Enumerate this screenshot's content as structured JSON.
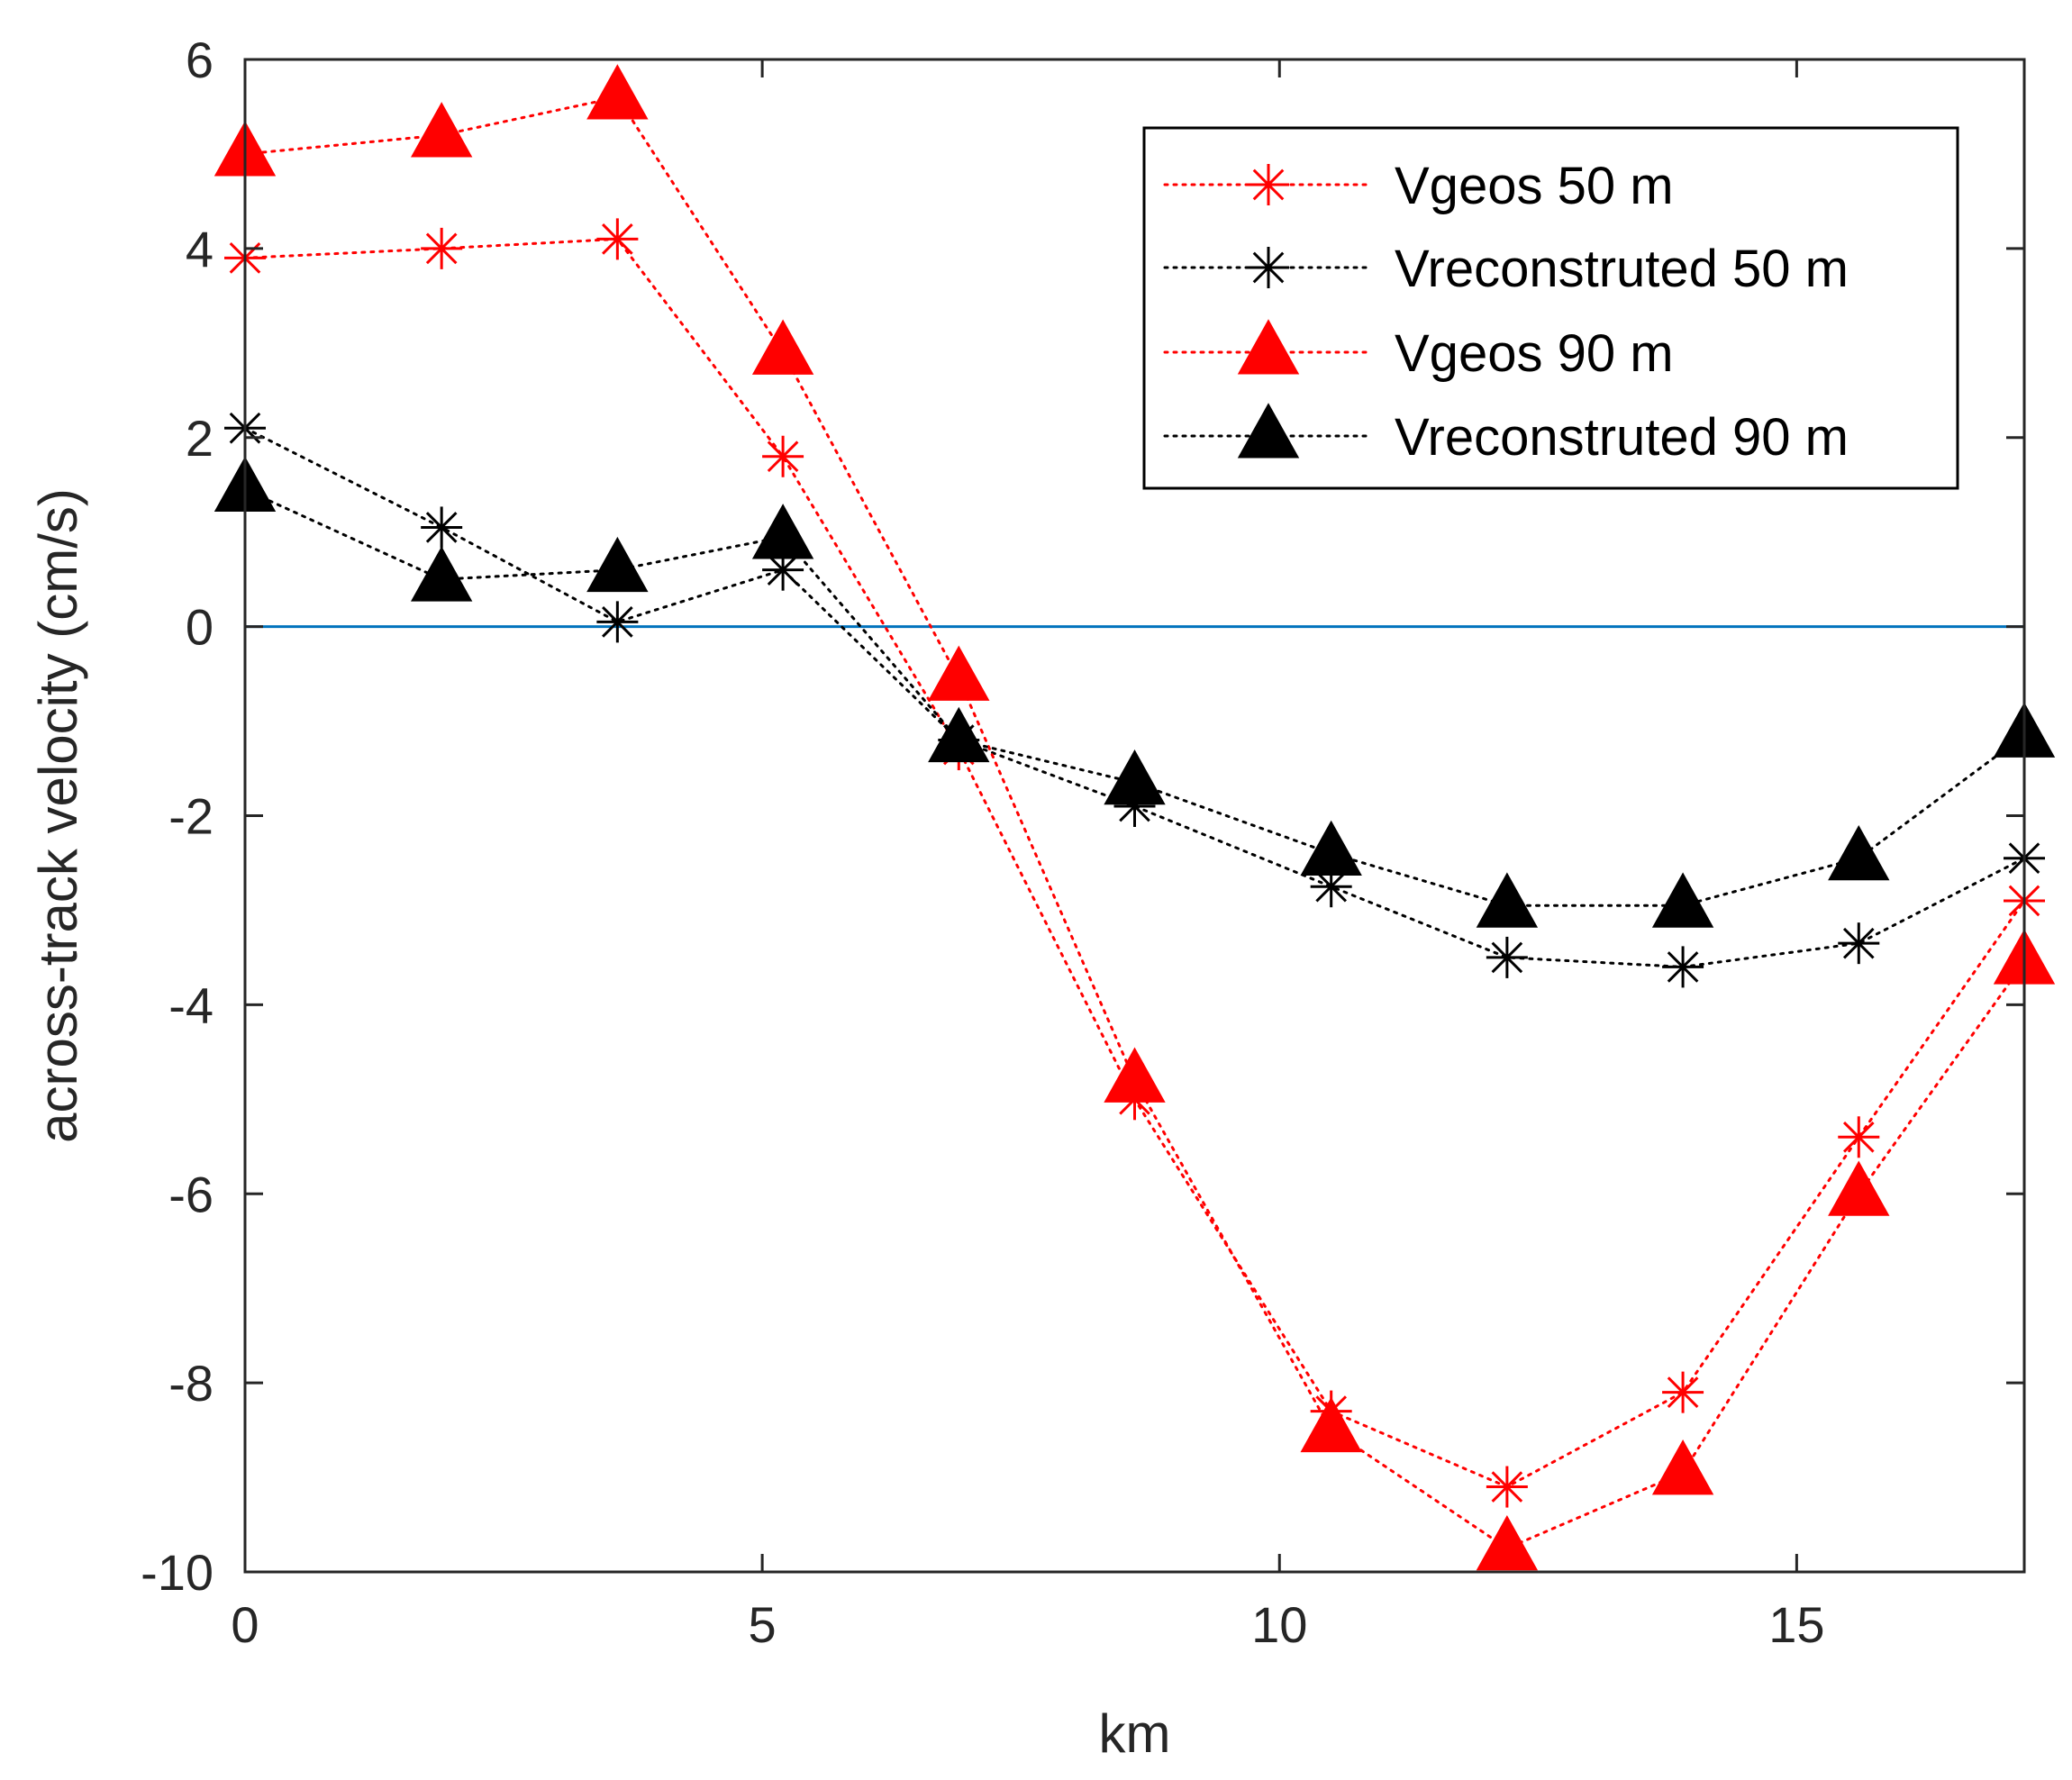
{
  "chart_data": {
    "type": "line",
    "title": "",
    "xlabel": "km",
    "ylabel": "across-track velocity (cm/s)",
    "xlim": [
      0,
      17.2
    ],
    "ylim": [
      -10,
      6
    ],
    "xticks": [
      "0",
      "5",
      "10",
      "15"
    ],
    "yticks": [
      "6",
      "4",
      "2",
      "0",
      "-2",
      "-4",
      "-6",
      "-8",
      "-10"
    ],
    "legend_position": "top-right",
    "zero_line": {
      "y": 0,
      "color": "#0072BD"
    },
    "x": [
      0,
      1.9,
      3.6,
      5.2,
      6.9,
      8.6,
      10.5,
      12.2,
      13.9,
      15.6,
      17.2
    ],
    "series": [
      {
        "name": "Vgeos 50 m",
        "marker": "asterisk",
        "color": "#ff0000",
        "values": [
          3.9,
          4.0,
          4.1,
          1.8,
          -1.3,
          -5.0,
          -8.3,
          -9.1,
          -8.1,
          -5.4,
          -2.9
        ]
      },
      {
        "name": "Vreconstruted 50 m",
        "marker": "asterisk",
        "color": "#000000",
        "values": [
          2.1,
          1.05,
          0.05,
          0.6,
          -1.2,
          -1.9,
          -2.75,
          -3.5,
          -3.6,
          -3.35,
          -2.45
        ]
      },
      {
        "name": "Vgeos 90 m",
        "marker": "triangle",
        "color": "#ff0000",
        "values": [
          5.0,
          5.2,
          5.6,
          2.9,
          -0.55,
          -4.8,
          -8.5,
          -9.75,
          -8.95,
          -6.0,
          -3.55
        ]
      },
      {
        "name": "Vreconstruted 90 m",
        "marker": "triangle",
        "color": "#000000",
        "values": [
          1.45,
          0.5,
          0.6,
          0.95,
          -1.2,
          -1.65,
          -2.4,
          -2.95,
          -2.95,
          -2.45,
          -1.15
        ]
      }
    ]
  }
}
